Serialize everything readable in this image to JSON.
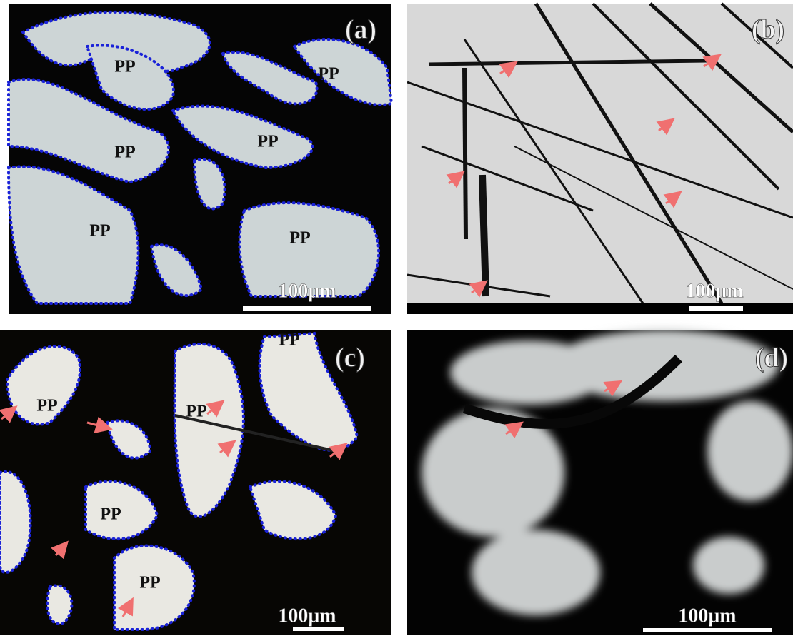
{
  "panels": [
    {
      "label": "(a)",
      "scale_bar": "100μm",
      "regions": [
        "PP",
        "PP",
        "PP",
        "PP",
        "PP",
        "PP"
      ]
    },
    {
      "label": "(b)",
      "scale_bar": "100μm"
    },
    {
      "label": "(c)",
      "scale_bar": "100μm",
      "regions": [
        "PP",
        "PP",
        "PP",
        "PP",
        "PP"
      ]
    },
    {
      "label": "(d)",
      "scale_bar": "100μm"
    }
  ]
}
